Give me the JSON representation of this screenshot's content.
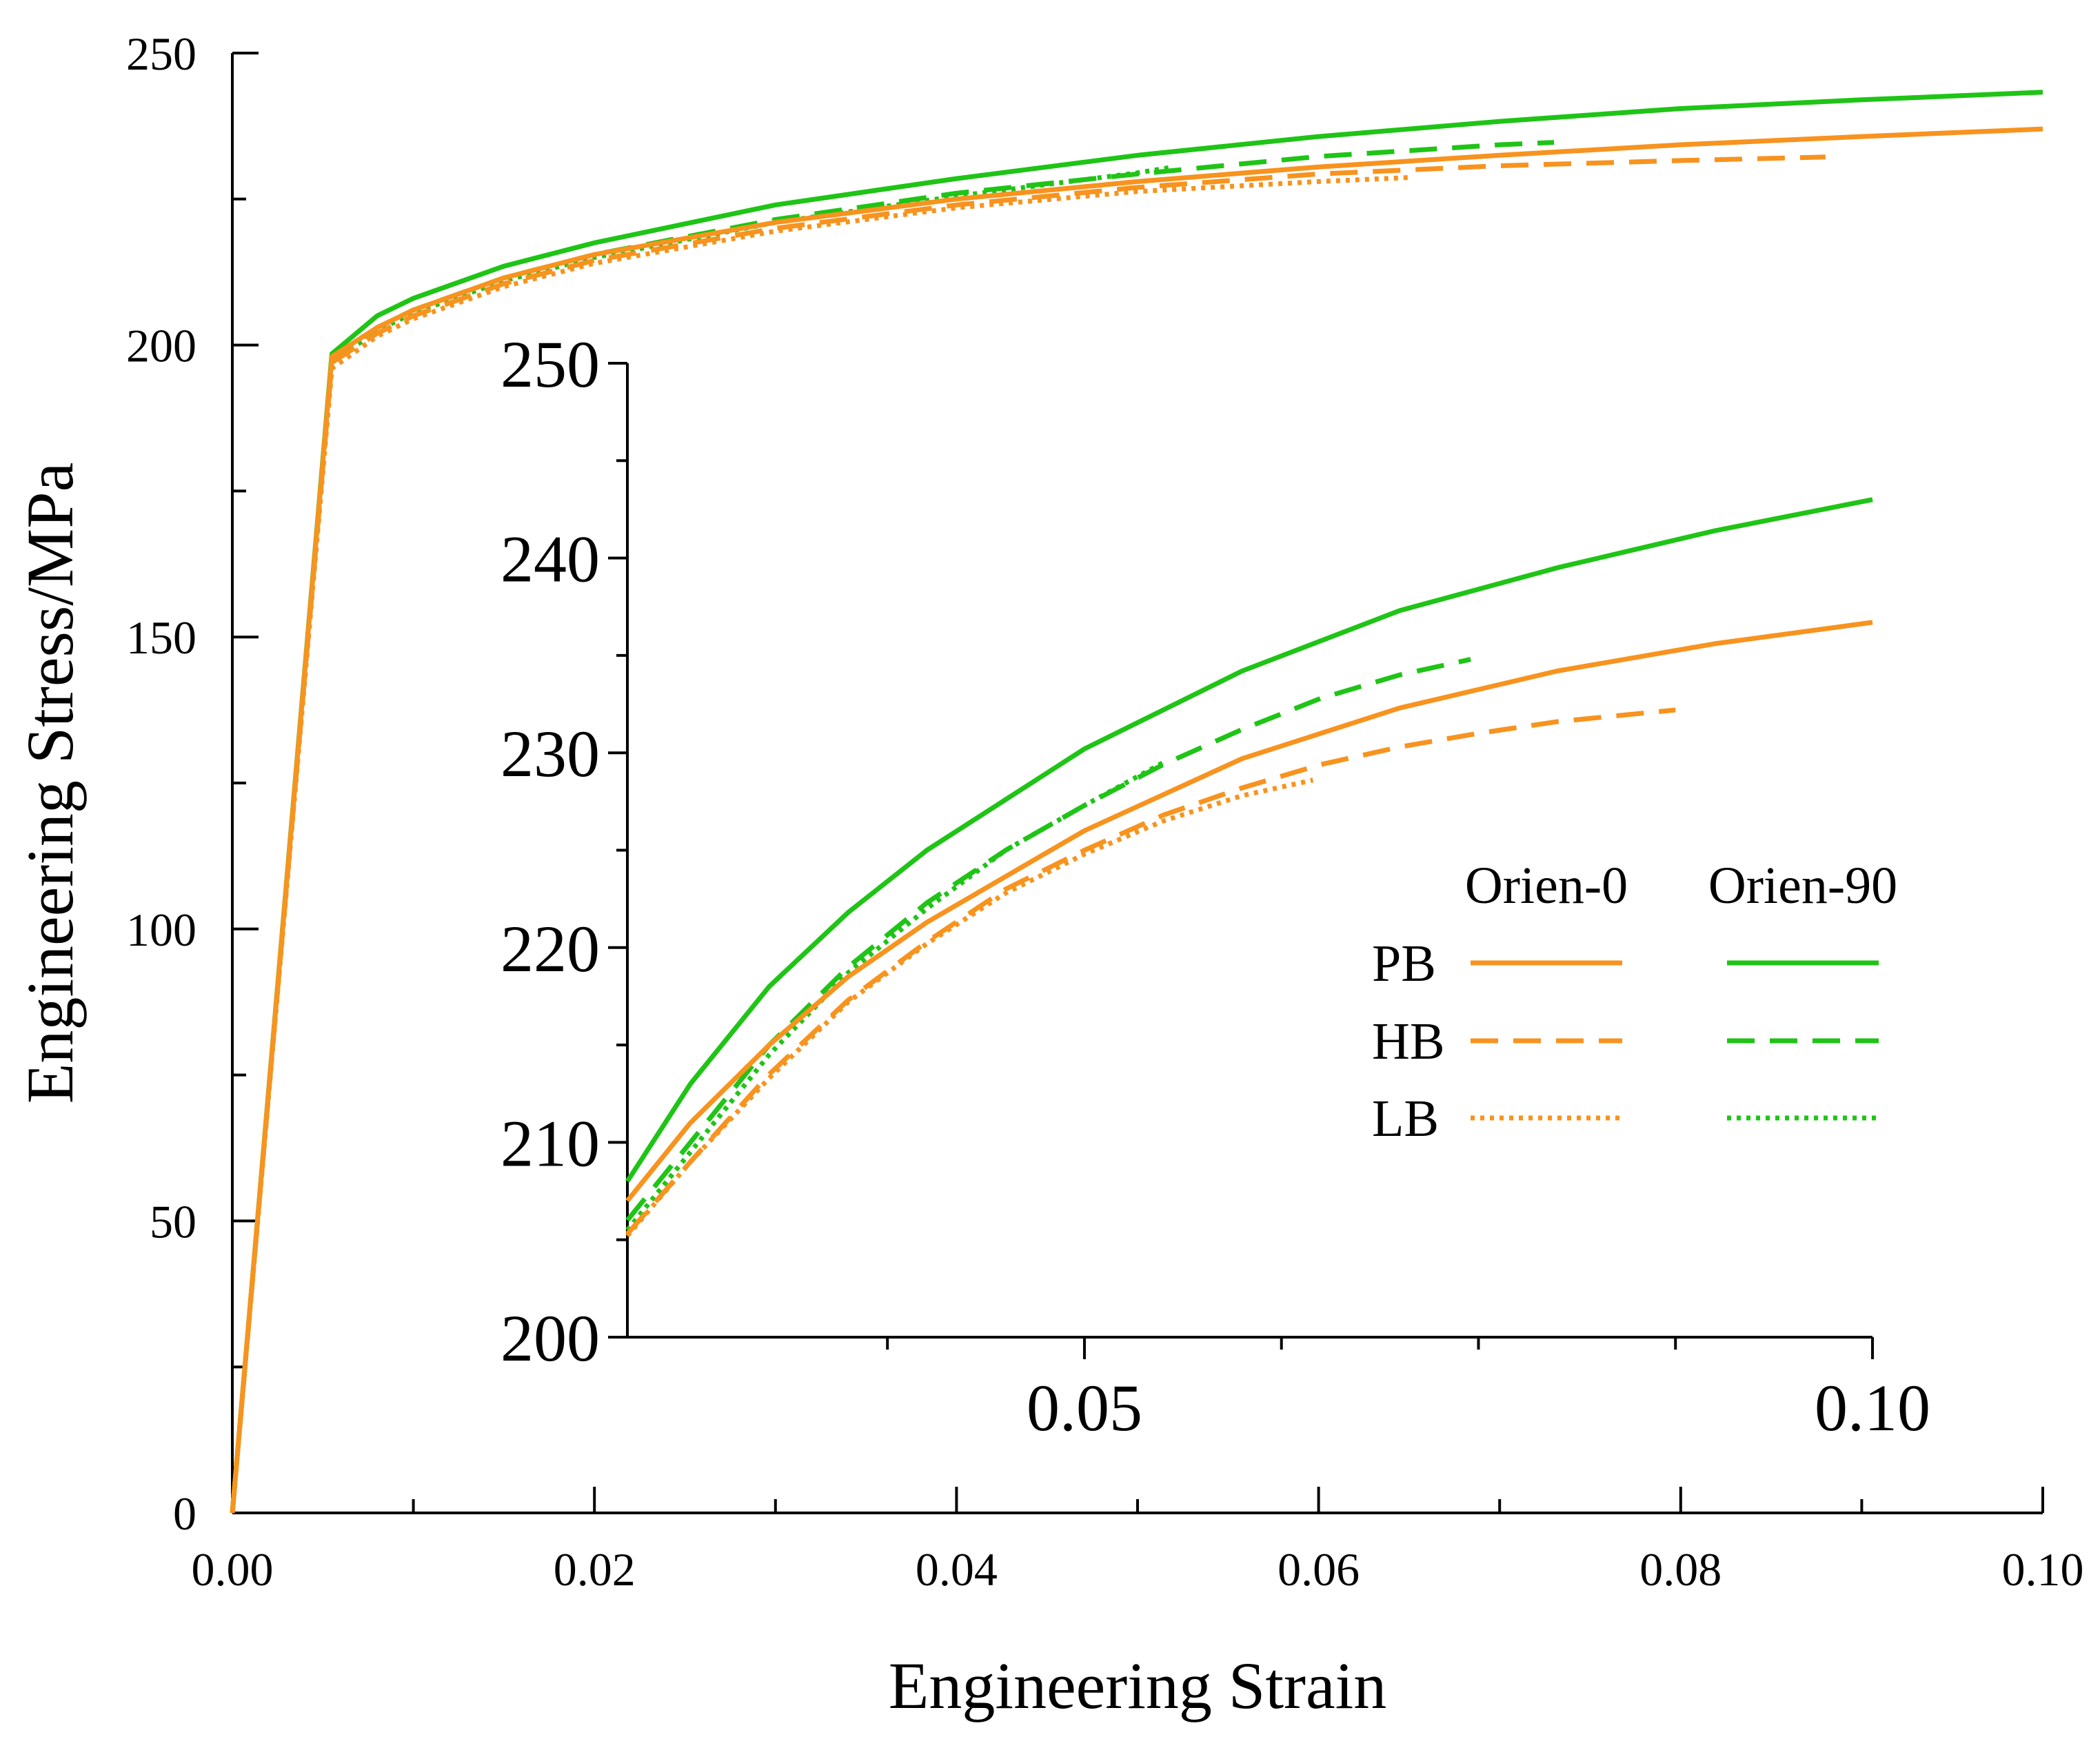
{
  "chart_data": [
    {
      "id": "main",
      "type": "line",
      "xlabel": "Engineering Strain",
      "ylabel": "Engineering Stress/MPa",
      "xlim": [
        0,
        0.1
      ],
      "ylim": [
        0,
        250
      ],
      "x_ticks": [
        "0.00",
        "0.02",
        "0.04",
        "0.06",
        "0.08",
        "0.10"
      ],
      "y_ticks": [
        "0",
        "50",
        "100",
        "150",
        "200",
        "250"
      ],
      "series": [
        {
          "id": "pb0",
          "name": "PB Orien-0",
          "color": "#F7931E",
          "style": "solid",
          "x": [
            0,
            0.0055,
            0.008,
            0.01,
            0.015,
            0.02,
            0.03,
            0.04,
            0.05,
            0.06,
            0.07,
            0.08,
            0.09,
            0.1
          ],
          "y": [
            0,
            198,
            203,
            206,
            211.5,
            215.5,
            221,
            225,
            228,
            230.5,
            232.5,
            234.3,
            235.7,
            237
          ]
        },
        {
          "id": "hb0",
          "name": "HB Orien-0",
          "color": "#F7931E",
          "style": "dashed",
          "x": [
            0,
            0.0055,
            0.008,
            0.01,
            0.015,
            0.02,
            0.03,
            0.04,
            0.05,
            0.06,
            0.07,
            0.08,
            0.088
          ],
          "y": [
            0,
            197,
            202,
            205,
            210.5,
            214.5,
            220,
            224,
            227,
            229.3,
            230.7,
            231.6,
            232.2
          ]
        },
        {
          "id": "lb0",
          "name": "LB Orien-0",
          "color": "#F7931E",
          "style": "dotted",
          "x": [
            0,
            0.0055,
            0.008,
            0.01,
            0.015,
            0.02,
            0.03,
            0.04,
            0.05,
            0.06,
            0.065
          ],
          "y": [
            0,
            196,
            201.5,
            204.5,
            210,
            214,
            219.5,
            223.5,
            226.3,
            228,
            228.7
          ]
        },
        {
          "id": "pb90",
          "name": "PB Orien-90",
          "color": "#1FC416",
          "style": "solid",
          "x": [
            0,
            0.0055,
            0.008,
            0.01,
            0.015,
            0.02,
            0.03,
            0.04,
            0.05,
            0.06,
            0.07,
            0.08,
            0.09,
            0.1
          ],
          "y": [
            0,
            198.5,
            205,
            208,
            213.5,
            217.5,
            224,
            228.5,
            232.5,
            235.7,
            238.3,
            240.5,
            242,
            243.3
          ]
        },
        {
          "id": "hb90",
          "name": "HB Orien-90",
          "color": "#1FC416",
          "style": "dashed",
          "x": [
            0,
            0.0055,
            0.008,
            0.01,
            0.015,
            0.02,
            0.03,
            0.04,
            0.05,
            0.06,
            0.07,
            0.073
          ],
          "y": [
            0,
            197.5,
            203,
            206,
            211.5,
            215.5,
            221.5,
            226,
            229.3,
            232.3,
            234.3,
            234.7
          ]
        },
        {
          "id": "lb90",
          "name": "LB Orien-90",
          "color": "#1FC416",
          "style": "dotted",
          "x": [
            0,
            0.0055,
            0.008,
            0.01,
            0.015,
            0.02,
            0.03,
            0.04,
            0.05,
            0.052
          ],
          "y": [
            0,
            197,
            202.5,
            205.5,
            211,
            215,
            221,
            225.5,
            229.5,
            230.5
          ]
        }
      ]
    },
    {
      "id": "inset",
      "type": "line",
      "xlim": [
        0.021,
        0.1
      ],
      "ylim": [
        200,
        250
      ],
      "x_ticks": [
        "0.05",
        "0.10"
      ],
      "y_ticks": [
        "200",
        "210",
        "220",
        "230",
        "240",
        "250"
      ],
      "legend": {
        "position": "inset-right",
        "column_headers": [
          "Orien-0",
          "Orien-90"
        ],
        "row_labels": [
          "PB",
          "HB",
          "LB"
        ]
      },
      "series": [
        {
          "id": "pb0",
          "name": "PB Orien-0",
          "color": "#F7931E",
          "style": "solid",
          "x": [
            0.021,
            0.025,
            0.03,
            0.035,
            0.04,
            0.05,
            0.06,
            0.07,
            0.08,
            0.09,
            0.1
          ],
          "y": [
            207,
            211,
            215,
            218.5,
            221.3,
            226,
            229.7,
            232.3,
            234.2,
            235.6,
            236.7
          ]
        },
        {
          "id": "hb0",
          "name": "HB Orien-0",
          "color": "#F7931E",
          "style": "dashed",
          "x": [
            0.021,
            0.025,
            0.03,
            0.035,
            0.04,
            0.045,
            0.05,
            0.055,
            0.06,
            0.065,
            0.07,
            0.075,
            0.08,
            0.0875
          ],
          "y": [
            205.3,
            209,
            213.5,
            217.3,
            220.3,
            223,
            225,
            226.8,
            228.2,
            229.4,
            230.3,
            231,
            231.6,
            232.2
          ]
        },
        {
          "id": "lb0",
          "name": "LB Orien-0",
          "color": "#F7931E",
          "style": "dotted",
          "x": [
            0.021,
            0.025,
            0.03,
            0.035,
            0.04,
            0.045,
            0.05,
            0.055,
            0.06,
            0.0645
          ],
          "y": [
            205.2,
            209,
            213.3,
            217.2,
            220.2,
            222.8,
            224.8,
            226.5,
            227.8,
            228.6
          ]
        },
        {
          "id": "pb90",
          "name": "PB Orien-90",
          "color": "#1FC416",
          "style": "solid",
          "x": [
            0.021,
            0.025,
            0.03,
            0.035,
            0.04,
            0.05,
            0.06,
            0.07,
            0.08,
            0.09,
            0.1
          ],
          "y": [
            208,
            213,
            218,
            221.8,
            225,
            230.2,
            234.2,
            237.3,
            239.5,
            241.4,
            243
          ]
        },
        {
          "id": "hb90",
          "name": "HB Orien-90",
          "color": "#1FC416",
          "style": "dashed",
          "x": [
            0.021,
            0.025,
            0.03,
            0.035,
            0.04,
            0.045,
            0.05,
            0.055,
            0.06,
            0.065,
            0.07,
            0.0745
          ],
          "y": [
            206,
            210,
            215,
            219,
            222.3,
            225,
            227.3,
            229.4,
            231.2,
            232.8,
            234,
            234.8
          ]
        },
        {
          "id": "lb90",
          "name": "LB Orien-90",
          "color": "#1FC416",
          "style": "dotted",
          "x": [
            0.021,
            0.025,
            0.03,
            0.035,
            0.04,
            0.045,
            0.05,
            0.055
          ],
          "y": [
            205.5,
            209.5,
            214.5,
            218.7,
            222,
            225,
            227.3,
            229.5
          ]
        }
      ]
    }
  ]
}
